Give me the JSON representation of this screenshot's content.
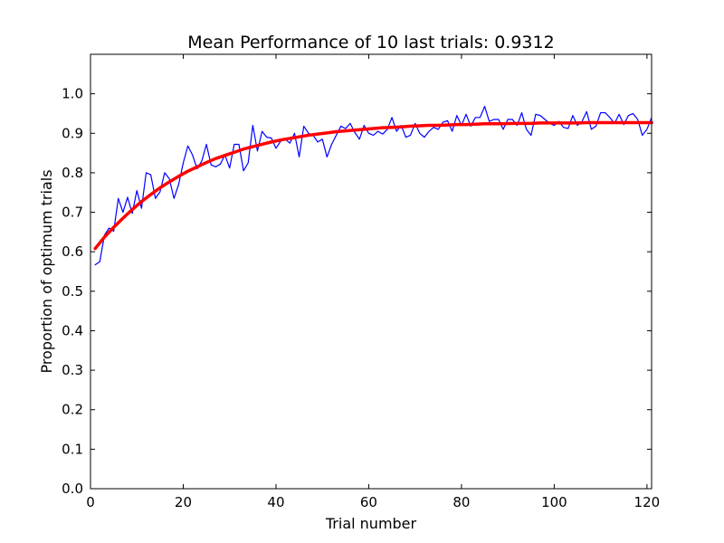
{
  "chart_data": {
    "type": "line",
    "title": "Mean Performance of 10 last trials: 0.9312",
    "xlabel": "Trial number",
    "ylabel": "Proportion of optimum trials",
    "xlim": [
      0,
      121
    ],
    "ylim": [
      0.0,
      1.1
    ],
    "grid": false,
    "x_ticks": [
      0,
      20,
      40,
      60,
      80,
      100,
      120
    ],
    "y_ticks": [
      0.0,
      0.1,
      0.2,
      0.3,
      0.4,
      0.5,
      0.6,
      0.7,
      0.8,
      0.9,
      1.0
    ],
    "x_tick_labels": [
      "0",
      "20",
      "40",
      "60",
      "80",
      "100",
      "120"
    ],
    "y_tick_labels": [
      "0.0",
      "0.1",
      "0.2",
      "0.3",
      "0.4",
      "0.5",
      "0.6",
      "0.7",
      "0.8",
      "0.9",
      "1.0"
    ],
    "series": [
      {
        "color": "#0000ff",
        "x": [
          1,
          2,
          3,
          4,
          5,
          6,
          7,
          8,
          9,
          10,
          11,
          12,
          13,
          14,
          15,
          16,
          17,
          18,
          19,
          20,
          21,
          22,
          23,
          24,
          25,
          26,
          27,
          28,
          29,
          30,
          31,
          32,
          33,
          34,
          35,
          36,
          37,
          38,
          39,
          40,
          41,
          42,
          43,
          44,
          45,
          46,
          47,
          48,
          49,
          50,
          51,
          52,
          53,
          54,
          55,
          56,
          57,
          58,
          59,
          60,
          61,
          62,
          63,
          64,
          65,
          66,
          67,
          68,
          69,
          70,
          71,
          72,
          73,
          74,
          75,
          76,
          77,
          78,
          79,
          80,
          81,
          82,
          83,
          84,
          85,
          86,
          87,
          88,
          89,
          90,
          91,
          92,
          93,
          94,
          95,
          96,
          97,
          98,
          99,
          100,
          101,
          102,
          103,
          104,
          105,
          106,
          107,
          108,
          109,
          110,
          111,
          112,
          113,
          114,
          115,
          116,
          117,
          118,
          119,
          120,
          121
        ],
        "y": [
          0.567,
          0.575,
          0.642,
          0.66,
          0.652,
          0.735,
          0.7,
          0.738,
          0.697,
          0.755,
          0.71,
          0.8,
          0.795,
          0.735,
          0.752,
          0.8,
          0.785,
          0.735,
          0.77,
          0.825,
          0.868,
          0.845,
          0.81,
          0.83,
          0.872,
          0.82,
          0.815,
          0.822,
          0.845,
          0.812,
          0.872,
          0.872,
          0.805,
          0.825,
          0.92,
          0.855,
          0.905,
          0.89,
          0.888,
          0.862,
          0.88,
          0.885,
          0.875,
          0.9,
          0.84,
          0.918,
          0.9,
          0.895,
          0.878,
          0.885,
          0.84,
          0.872,
          0.895,
          0.918,
          0.912,
          0.925,
          0.902,
          0.885,
          0.92,
          0.9,
          0.895,
          0.905,
          0.898,
          0.91,
          0.94,
          0.905,
          0.92,
          0.89,
          0.895,
          0.925,
          0.9,
          0.89,
          0.905,
          0.915,
          0.91,
          0.928,
          0.932,
          0.905,
          0.945,
          0.92,
          0.948,
          0.918,
          0.94,
          0.94,
          0.968,
          0.93,
          0.935,
          0.935,
          0.91,
          0.935,
          0.935,
          0.92,
          0.952,
          0.91,
          0.895,
          0.948,
          0.945,
          0.935,
          0.925,
          0.92,
          0.93,
          0.915,
          0.912,
          0.945,
          0.92,
          0.93,
          0.955,
          0.91,
          0.918,
          0.952,
          0.952,
          0.94,
          0.925,
          0.948,
          0.922,
          0.945,
          0.95,
          0.935,
          0.895,
          0.91,
          0.94
        ]
      },
      {
        "color": "#ff0000",
        "x": [
          1,
          3,
          5,
          7,
          9,
          11,
          13,
          15,
          17,
          19,
          21,
          23,
          25,
          27,
          29,
          31,
          33,
          35,
          37,
          39,
          41,
          43,
          45,
          47,
          49,
          51,
          53,
          55,
          57,
          59,
          61,
          63,
          65,
          67,
          69,
          71,
          73,
          75,
          77,
          79,
          81,
          83,
          85,
          87,
          89,
          91,
          93,
          95,
          97,
          99,
          101,
          103,
          105,
          107,
          109,
          111,
          113,
          115,
          117,
          119,
          121
        ],
        "y": [
          0.608,
          0.637,
          0.662,
          0.685,
          0.707,
          0.727,
          0.745,
          0.762,
          0.777,
          0.791,
          0.804,
          0.815,
          0.826,
          0.836,
          0.844,
          0.852,
          0.86,
          0.866,
          0.872,
          0.878,
          0.883,
          0.887,
          0.891,
          0.895,
          0.898,
          0.901,
          0.904,
          0.906,
          0.908,
          0.91,
          0.912,
          0.914,
          0.915,
          0.916,
          0.918,
          0.919,
          0.92,
          0.92,
          0.921,
          0.922,
          0.922,
          0.923,
          0.924,
          0.924,
          0.924,
          0.925,
          0.925,
          0.925,
          0.926,
          0.926,
          0.926,
          0.926,
          0.926,
          0.927,
          0.927,
          0.927,
          0.927,
          0.927,
          0.927,
          0.927,
          0.927
        ]
      }
    ]
  }
}
